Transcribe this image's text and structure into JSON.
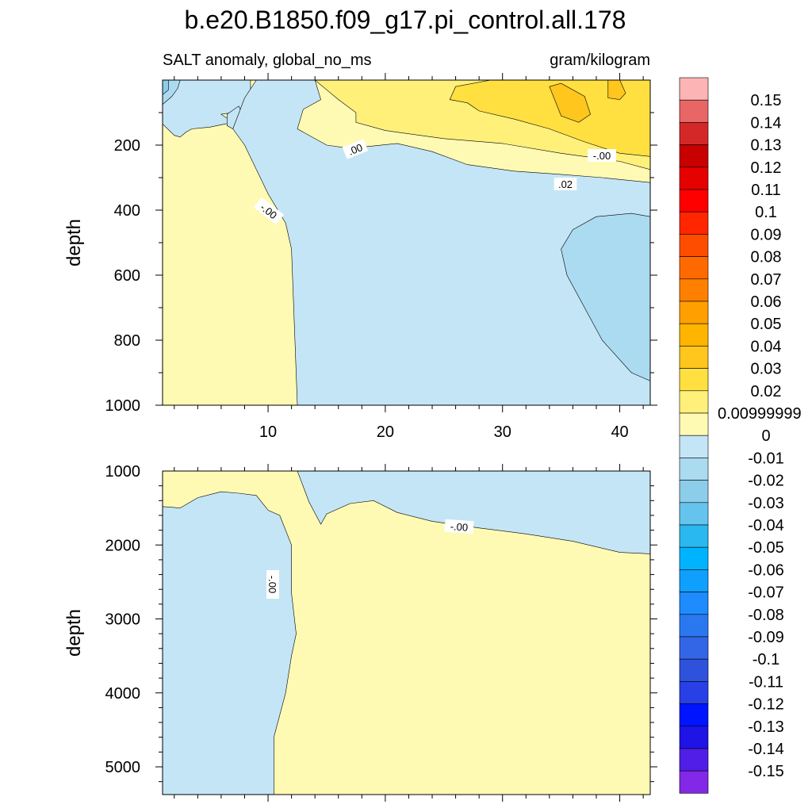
{
  "figure": {
    "title": "b.e20.B1850.f09_g17.pi_control.all.178",
    "left_subtitle": "SALT anomaly, global_no_ms",
    "right_subtitle": "gram/kilogram"
  },
  "chart_data": [
    {
      "type": "heatmap",
      "panel": "upper",
      "ylabel": "depth",
      "xlim": [
        1,
        42.6
      ],
      "ylim": [
        0,
        1000
      ],
      "y_reversed": true,
      "x_ticks": [
        10,
        20,
        30,
        40
      ],
      "y_ticks": [
        200,
        400,
        600,
        800,
        1000
      ],
      "contour_labels": [
        ".00",
        "-.00",
        ".02",
        "-.00",
        "-.00"
      ],
      "regions": [
        {
          "value": 0.005,
          "polygon": [
            [
              1,
              0
            ],
            [
              42.6,
              0
            ],
            [
              42.6,
              1000
            ],
            [
              1,
              1000
            ]
          ]
        },
        {
          "value": -0.005,
          "polygon": [
            [
              1,
              0
            ],
            [
              8.5,
              0
            ],
            [
              8.5,
              55
            ],
            [
              8,
              95
            ],
            [
              6,
              105
            ],
            [
              7,
              130
            ],
            [
              5,
              145
            ],
            [
              3.5,
              150
            ],
            [
              3,
              160
            ],
            [
              2.5,
              175
            ],
            [
              2,
              170
            ],
            [
              1,
              135
            ]
          ]
        },
        {
          "value": -0.005,
          "polygon": [
            [
              7.5,
              80
            ],
            [
              8,
              120
            ],
            [
              7.5,
              160
            ],
            [
              6.5,
              140
            ],
            [
              6.5,
              105
            ]
          ]
        },
        {
          "value": -0.005,
          "polygon": [
            [
              8,
              55
            ],
            [
              9,
              0
            ],
            [
              14,
              0
            ],
            [
              14.5,
              60
            ],
            [
              13,
              90
            ],
            [
              12.5,
              150
            ],
            [
              15,
              200
            ],
            [
              17,
              210
            ],
            [
              21,
              195
            ],
            [
              24,
              220
            ],
            [
              27,
              260
            ],
            [
              31,
              280
            ],
            [
              35,
              290
            ],
            [
              38.5,
              300
            ],
            [
              42.6,
              315
            ],
            [
              42.6,
              1000
            ],
            [
              12.5,
              1000
            ],
            [
              12,
              520
            ],
            [
              11.5,
              440
            ],
            [
              10,
              350
            ],
            [
              8,
              200
            ],
            [
              7,
              150
            ]
          ]
        },
        {
          "value": -0.015,
          "polygon": [
            [
              1,
              0
            ],
            [
              2.5,
              0
            ],
            [
              2.3,
              25
            ],
            [
              1.8,
              50
            ],
            [
              1,
              75
            ]
          ]
        },
        {
          "value": -0.025,
          "polygon": [
            [
              1,
              0
            ],
            [
              1.5,
              0
            ],
            [
              1.5,
              30
            ],
            [
              1,
              45
            ]
          ]
        },
        {
          "value": -0.015,
          "polygon": [
            [
              36,
              460
            ],
            [
              38,
              420
            ],
            [
              41,
              410
            ],
            [
              42.6,
              420
            ],
            [
              42.6,
              925
            ],
            [
              41,
              900
            ],
            [
              38.5,
              800
            ],
            [
              37,
              700
            ],
            [
              35.5,
              600
            ],
            [
              35,
              520
            ]
          ]
        },
        {
          "value": 0.015,
          "polygon": [
            [
              14,
              0
            ],
            [
              42.6,
              0
            ],
            [
              42.6,
              275
            ],
            [
              40,
              250
            ],
            [
              35,
              225
            ],
            [
              30,
              195
            ],
            [
              25,
              180
            ],
            [
              20,
              155
            ],
            [
              17.5,
              130
            ],
            [
              17.5,
              100
            ],
            [
              16,
              60
            ],
            [
              15,
              30
            ]
          ]
        },
        {
          "value": 0.025,
          "polygon": [
            [
              26,
              20
            ],
            [
              29,
              0
            ],
            [
              42.6,
              0
            ],
            [
              42.6,
              235
            ],
            [
              40,
              225
            ],
            [
              37,
              190
            ],
            [
              34,
              150
            ],
            [
              31,
              120
            ],
            [
              28,
              95
            ],
            [
              27,
              70
            ],
            [
              25.5,
              60
            ]
          ]
        },
        {
          "value": 0.035,
          "polygon": [
            [
              34,
              20
            ],
            [
              35,
              10
            ],
            [
              37,
              50
            ],
            [
              37.5,
              105
            ],
            [
              36.5,
              130
            ],
            [
              35,
              110
            ]
          ]
        },
        {
          "value": 0.035,
          "polygon": [
            [
              39,
              0
            ],
            [
              40,
              0
            ],
            [
              40.5,
              40
            ],
            [
              40,
              60
            ],
            [
              39,
              55
            ]
          ]
        }
      ]
    },
    {
      "type": "heatmap",
      "panel": "lower",
      "ylabel": "depth",
      "xlim": [
        1,
        42.6
      ],
      "ylim": [
        1000,
        5375
      ],
      "y_reversed": true,
      "x_ticks": [
        10,
        20,
        30,
        40
      ],
      "y_ticks": [
        1000,
        2000,
        3000,
        4000,
        5000
      ],
      "contour_labels": [
        "-.00",
        "-.00"
      ],
      "regions": [
        {
          "value": 0.005,
          "polygon": [
            [
              1,
              1000
            ],
            [
              42.6,
              1000
            ],
            [
              42.6,
              5375
            ],
            [
              1,
              5375
            ]
          ]
        },
        {
          "value": -0.005,
          "polygon": [
            [
              1,
              1480
            ],
            [
              2.5,
              1500
            ],
            [
              4,
              1360
            ],
            [
              6,
              1280
            ],
            [
              7.5,
              1300
            ],
            [
              9,
              1330
            ],
            [
              10,
              1530
            ],
            [
              11,
              1600
            ],
            [
              12,
              2000
            ],
            [
              12,
              2650
            ],
            [
              12.4,
              3200
            ],
            [
              12,
              3500
            ],
            [
              11.5,
              4000
            ],
            [
              10.5,
              4600
            ],
            [
              10.5,
              5375
            ],
            [
              1,
              5375
            ]
          ]
        },
        {
          "value": -0.005,
          "polygon": [
            [
              12.5,
              1000
            ],
            [
              42.6,
              1000
            ],
            [
              42.6,
              2120
            ],
            [
              40,
              2100
            ],
            [
              36,
              1950
            ],
            [
              32,
              1850
            ],
            [
              28,
              1770
            ],
            [
              24,
              1680
            ],
            [
              21,
              1560
            ],
            [
              19,
              1400
            ],
            [
              17,
              1440
            ],
            [
              15,
              1580
            ],
            [
              14.5,
              1720
            ],
            [
              13.5,
              1420
            ]
          ]
        }
      ]
    }
  ],
  "colorbar": {
    "entries": [
      {
        "label": "0.15",
        "color": "#fcb4b4"
      },
      {
        "label": "0.14",
        "color": "#e86666"
      },
      {
        "label": "0.13",
        "color": "#d42828"
      },
      {
        "label": "0.12",
        "color": "#c80000"
      },
      {
        "label": "0.11",
        "color": "#e60000"
      },
      {
        "label": "0.1",
        "color": "#ff0000"
      },
      {
        "label": "0.09",
        "color": "#ff2600"
      },
      {
        "label": "0.08",
        "color": "#ff4d00"
      },
      {
        "label": "0.07",
        "color": "#ff6a00"
      },
      {
        "label": "0.06",
        "color": "#ff8000"
      },
      {
        "label": "0.05",
        "color": "#ffa000"
      },
      {
        "label": "0.04",
        "color": "#ffb400"
      },
      {
        "label": "0.03",
        "color": "#ffc61e"
      },
      {
        "label": "0.02",
        "color": "#ffe040"
      },
      {
        "label": "0.00999999",
        "color": "#fff07a"
      },
      {
        "label": "0",
        "color": "#fffab3"
      },
      {
        "label": "-0.01",
        "color": "#c4e5f5"
      },
      {
        "label": "-0.02",
        "color": "#abdbf0"
      },
      {
        "label": "-0.03",
        "color": "#8ccde9"
      },
      {
        "label": "-0.04",
        "color": "#64c4ee"
      },
      {
        "label": "-0.05",
        "color": "#2ab8f0"
      },
      {
        "label": "-0.06",
        "color": "#00b3ff"
      },
      {
        "label": "-0.07",
        "color": "#0fa0ff"
      },
      {
        "label": "-0.08",
        "color": "#1e8cff"
      },
      {
        "label": "-0.09",
        "color": "#2a78f0"
      },
      {
        "label": "-0.1",
        "color": "#3366e6"
      },
      {
        "label": "-0.11",
        "color": "#2e52dc"
      },
      {
        "label": "-0.12",
        "color": "#2840e6"
      },
      {
        "label": "-0.13",
        "color": "#0014ff"
      },
      {
        "label": "-0.14",
        "color": "#1e14e6"
      },
      {
        "label": "-0.15",
        "color": "#501ee6"
      },
      {
        "label": "",
        "color": "#8228e6"
      }
    ]
  }
}
